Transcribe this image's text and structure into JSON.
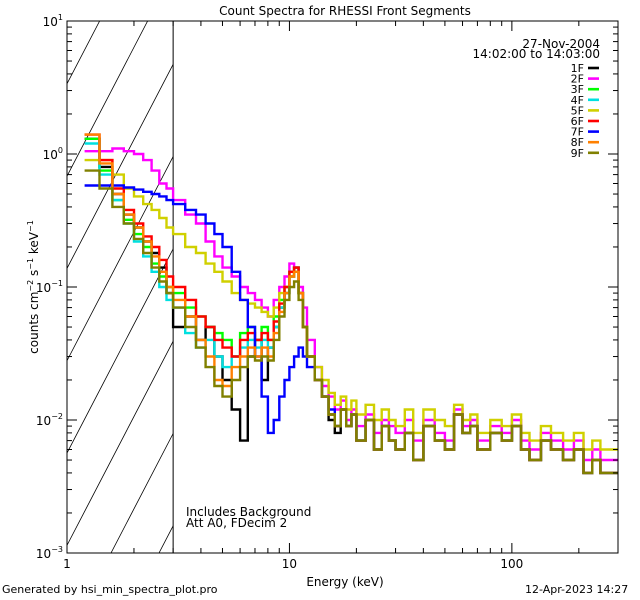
{
  "chart_data": {
    "type": "line",
    "title": "Count Spectra for RHESSI Front Segments",
    "xlabel": "Energy (keV)",
    "ylabel_parts": {
      "a": "counts cm",
      "e1": "−2",
      "b": " s",
      "e2": "−1",
      "c": " keV",
      "e3": "−1"
    },
    "xscale": "log",
    "yscale": "log",
    "xlim": [
      1,
      300
    ],
    "ylim": [
      0.001,
      10
    ],
    "x_ticks": [
      {
        "v": 1,
        "label": "1"
      },
      {
        "v": 10,
        "label": "10"
      },
      {
        "v": 100,
        "label": "100"
      }
    ],
    "y_ticks": [
      {
        "v": 0.001,
        "base": "10",
        "exp": "−3"
      },
      {
        "v": 0.01,
        "base": "10",
        "exp": "−2"
      },
      {
        "v": 0.1,
        "base": "10",
        "exp": "−1"
      },
      {
        "v": 1,
        "base": "10",
        "exp": "0"
      },
      {
        "v": 10,
        "base": "10",
        "exp": "1"
      }
    ],
    "hatched_region": {
      "x_from": 1,
      "x_to": 3
    },
    "legend": {
      "placement": "top-right",
      "date": "27-Nov-2004",
      "time_range": "14:02:00 to 14:03:00"
    },
    "annotations": [
      "Includes Background",
      "Att A0, FDecim 2"
    ],
    "energy_bins": [
      1.2,
      1.4,
      1.6,
      1.8,
      2.0,
      2.2,
      2.4,
      2.6,
      2.8,
      3.0,
      3.4,
      3.8,
      4.2,
      4.6,
      5.0,
      5.5,
      6.0,
      6.5,
      7.0,
      7.5,
      8.0,
      8.5,
      9.0,
      9.5,
      10.0,
      10.5,
      11.0,
      11.5,
      12.0,
      13.0,
      14.0,
      15.0,
      16.0,
      17.0,
      18.0,
      19.0,
      20.0,
      22.0,
      24.0,
      26.0,
      28.0,
      30.0,
      33.0,
      36.0,
      40.0,
      45.0,
      50.0,
      55.0,
      60.0,
      65.0,
      70.0,
      80.0,
      90.0,
      100.0,
      110.0,
      120.0,
      135.0,
      150.0,
      170.0,
      190.0,
      210.0,
      230.0,
      250.0,
      275.0,
      300.0
    ],
    "series": [
      {
        "name": "1F",
        "color": "#000000",
        "values": [
          1.3,
          0.8,
          0.5,
          0.35,
          0.28,
          0.22,
          0.18,
          0.14,
          0.09,
          0.05,
          0.06,
          0.04,
          0.05,
          0.03,
          0.02,
          0.012,
          0.007,
          0.03,
          0.04,
          0.02,
          0.035,
          0.05,
          0.07,
          0.09,
          0.12,
          0.14,
          0.09,
          0.05,
          0.03,
          0.02,
          0.015,
          0.01,
          0.008,
          0.012,
          0.009,
          0.011,
          0.007,
          0.01,
          0.006,
          0.009,
          0.007,
          0.006,
          0.008,
          0.005,
          0.009,
          0.007,
          0.006,
          0.011,
          0.008,
          0.009,
          0.006,
          0.008,
          0.007,
          0.009,
          0.006,
          0.005,
          0.007,
          0.006,
          0.005,
          0.006,
          0.004,
          0.005,
          0.004,
          0.004
        ]
      },
      {
        "name": "2F",
        "color": "#ff00ff",
        "values": [
          1.05,
          1.05,
          1.1,
          1.05,
          1.0,
          0.9,
          0.75,
          0.6,
          0.55,
          0.45,
          0.35,
          0.3,
          0.22,
          0.17,
          0.14,
          0.12,
          0.1,
          0.09,
          0.08,
          0.07,
          0.06,
          0.08,
          0.1,
          0.12,
          0.15,
          0.14,
          0.1,
          0.07,
          0.04,
          0.025,
          0.018,
          0.015,
          0.012,
          0.014,
          0.01,
          0.012,
          0.009,
          0.011,
          0.008,
          0.01,
          0.009,
          0.008,
          0.01,
          0.007,
          0.01,
          0.008,
          0.007,
          0.012,
          0.009,
          0.01,
          0.007,
          0.009,
          0.008,
          0.01,
          0.007,
          0.006,
          0.008,
          0.007,
          0.006,
          0.007,
          0.005,
          0.006,
          0.005,
          0.005
        ]
      },
      {
        "name": "3F",
        "color": "#00ff00",
        "values": [
          1.3,
          0.75,
          0.45,
          0.32,
          0.25,
          0.2,
          0.15,
          0.12,
          0.1,
          0.09,
          0.07,
          0.06,
          0.05,
          0.045,
          0.04,
          0.03,
          0.045,
          0.05,
          0.04,
          0.05,
          0.04,
          0.06,
          0.08,
          0.1,
          0.13,
          0.14,
          0.09,
          0.05,
          0.03,
          0.02,
          0.015,
          0.011,
          0.009,
          0.012,
          0.009,
          0.011,
          0.007,
          0.01,
          0.006,
          0.009,
          0.007,
          0.006,
          0.008,
          0.005,
          0.009,
          0.007,
          0.006,
          0.011,
          0.008,
          0.009,
          0.006,
          0.008,
          0.007,
          0.009,
          0.006,
          0.005,
          0.007,
          0.006,
          0.005,
          0.006,
          0.004,
          0.005,
          0.004,
          0.004
        ]
      },
      {
        "name": "4F",
        "color": "#00e0e0",
        "values": [
          1.2,
          0.7,
          0.45,
          0.3,
          0.22,
          0.17,
          0.13,
          0.1,
          0.08,
          0.07,
          0.045,
          0.035,
          0.04,
          0.03,
          0.025,
          0.03,
          0.035,
          0.04,
          0.035,
          0.04,
          0.035,
          0.05,
          0.07,
          0.09,
          0.12,
          0.13,
          0.09,
          0.05,
          0.03,
          0.02,
          0.015,
          0.011,
          0.009,
          0.012,
          0.009,
          0.011,
          0.007,
          0.01,
          0.006,
          0.009,
          0.007,
          0.006,
          0.008,
          0.005,
          0.009,
          0.007,
          0.006,
          0.011,
          0.008,
          0.009,
          0.006,
          0.008,
          0.007,
          0.009,
          0.006,
          0.005,
          0.007,
          0.006,
          0.005,
          0.006,
          0.004,
          0.005,
          0.004,
          0.004
        ]
      },
      {
        "name": "5F",
        "color": "#d0d000",
        "values": [
          0.9,
          0.9,
          0.7,
          0.55,
          0.48,
          0.42,
          0.38,
          0.33,
          0.28,
          0.25,
          0.2,
          0.18,
          0.15,
          0.13,
          0.11,
          0.09,
          0.08,
          0.075,
          0.07,
          0.065,
          0.06,
          0.07,
          0.09,
          0.1,
          0.12,
          0.13,
          0.09,
          0.05,
          0.03,
          0.025,
          0.02,
          0.016,
          0.013,
          0.015,
          0.012,
          0.014,
          0.011,
          0.013,
          0.01,
          0.012,
          0.01,
          0.009,
          0.012,
          0.008,
          0.012,
          0.01,
          0.009,
          0.013,
          0.01,
          0.011,
          0.008,
          0.01,
          0.009,
          0.011,
          0.008,
          0.007,
          0.009,
          0.008,
          0.007,
          0.008,
          0.006,
          0.007,
          0.006,
          0.006
        ]
      },
      {
        "name": "6F",
        "color": "#ff0000",
        "values": [
          1.4,
          0.9,
          0.55,
          0.38,
          0.3,
          0.24,
          0.2,
          0.16,
          0.12,
          0.1,
          0.08,
          0.06,
          0.05,
          0.04,
          0.035,
          0.03,
          0.04,
          0.045,
          0.04,
          0.045,
          0.04,
          0.055,
          0.075,
          0.1,
          0.13,
          0.14,
          0.09,
          0.05,
          0.03,
          0.02,
          0.015,
          0.011,
          0.009,
          0.012,
          0.009,
          0.011,
          0.007,
          0.01,
          0.006,
          0.009,
          0.007,
          0.006,
          0.008,
          0.005,
          0.009,
          0.007,
          0.006,
          0.011,
          0.008,
          0.009,
          0.006,
          0.008,
          0.007,
          0.009,
          0.006,
          0.005,
          0.007,
          0.006,
          0.005,
          0.006,
          0.004,
          0.005,
          0.004,
          0.004
        ]
      },
      {
        "name": "7F",
        "color": "#0000ff",
        "values": [
          0.58,
          0.58,
          0.58,
          0.56,
          0.54,
          0.52,
          0.5,
          0.48,
          0.45,
          0.42,
          0.38,
          0.35,
          0.3,
          0.25,
          0.2,
          0.13,
          0.08,
          0.05,
          0.03,
          0.015,
          0.008,
          0.01,
          0.015,
          0.02,
          0.025,
          0.03,
          0.035,
          0.03,
          0.025,
          0.02,
          0.015,
          0.012,
          0.009,
          0.012,
          0.009,
          0.011,
          0.007,
          0.01,
          0.006,
          0.009,
          0.007,
          0.006,
          0.008,
          0.005,
          0.009,
          0.007,
          0.006,
          0.011,
          0.008,
          0.009,
          0.006,
          0.008,
          0.007,
          0.009,
          0.006,
          0.005,
          0.007,
          0.006,
          0.005,
          0.006,
          0.004,
          0.005,
          0.004,
          0.004
        ]
      },
      {
        "name": "8F",
        "color": "#ff8000",
        "values": [
          1.4,
          0.85,
          0.5,
          0.35,
          0.28,
          0.22,
          0.17,
          0.13,
          0.1,
          0.08,
          0.06,
          0.04,
          0.03,
          0.02,
          0.018,
          0.025,
          0.03,
          0.035,
          0.03,
          0.035,
          0.03,
          0.045,
          0.065,
          0.09,
          0.12,
          0.13,
          0.09,
          0.05,
          0.03,
          0.02,
          0.015,
          0.011,
          0.009,
          0.012,
          0.009,
          0.011,
          0.007,
          0.01,
          0.006,
          0.009,
          0.007,
          0.006,
          0.008,
          0.005,
          0.009,
          0.007,
          0.006,
          0.011,
          0.008,
          0.009,
          0.006,
          0.008,
          0.007,
          0.009,
          0.006,
          0.005,
          0.007,
          0.006,
          0.005,
          0.006,
          0.004,
          0.005,
          0.004,
          0.004
        ]
      },
      {
        "name": "9F",
        "color": "#808000",
        "values": [
          0.75,
          0.55,
          0.4,
          0.3,
          0.23,
          0.18,
          0.14,
          0.11,
          0.09,
          0.07,
          0.05,
          0.035,
          0.025,
          0.018,
          0.015,
          0.02,
          0.025,
          0.03,
          0.028,
          0.03,
          0.028,
          0.04,
          0.06,
          0.08,
          0.1,
          0.11,
          0.08,
          0.05,
          0.03,
          0.02,
          0.015,
          0.011,
          0.009,
          0.012,
          0.009,
          0.011,
          0.007,
          0.01,
          0.006,
          0.009,
          0.007,
          0.006,
          0.008,
          0.005,
          0.009,
          0.007,
          0.006,
          0.011,
          0.008,
          0.009,
          0.006,
          0.008,
          0.007,
          0.009,
          0.006,
          0.005,
          0.007,
          0.006,
          0.005,
          0.006,
          0.004,
          0.005,
          0.004,
          0.004
        ]
      }
    ]
  },
  "footer": {
    "generated_by": "Generated by hsi_min_spectra_plot.pro",
    "timestamp": "12-Apr-2023 14:27"
  }
}
